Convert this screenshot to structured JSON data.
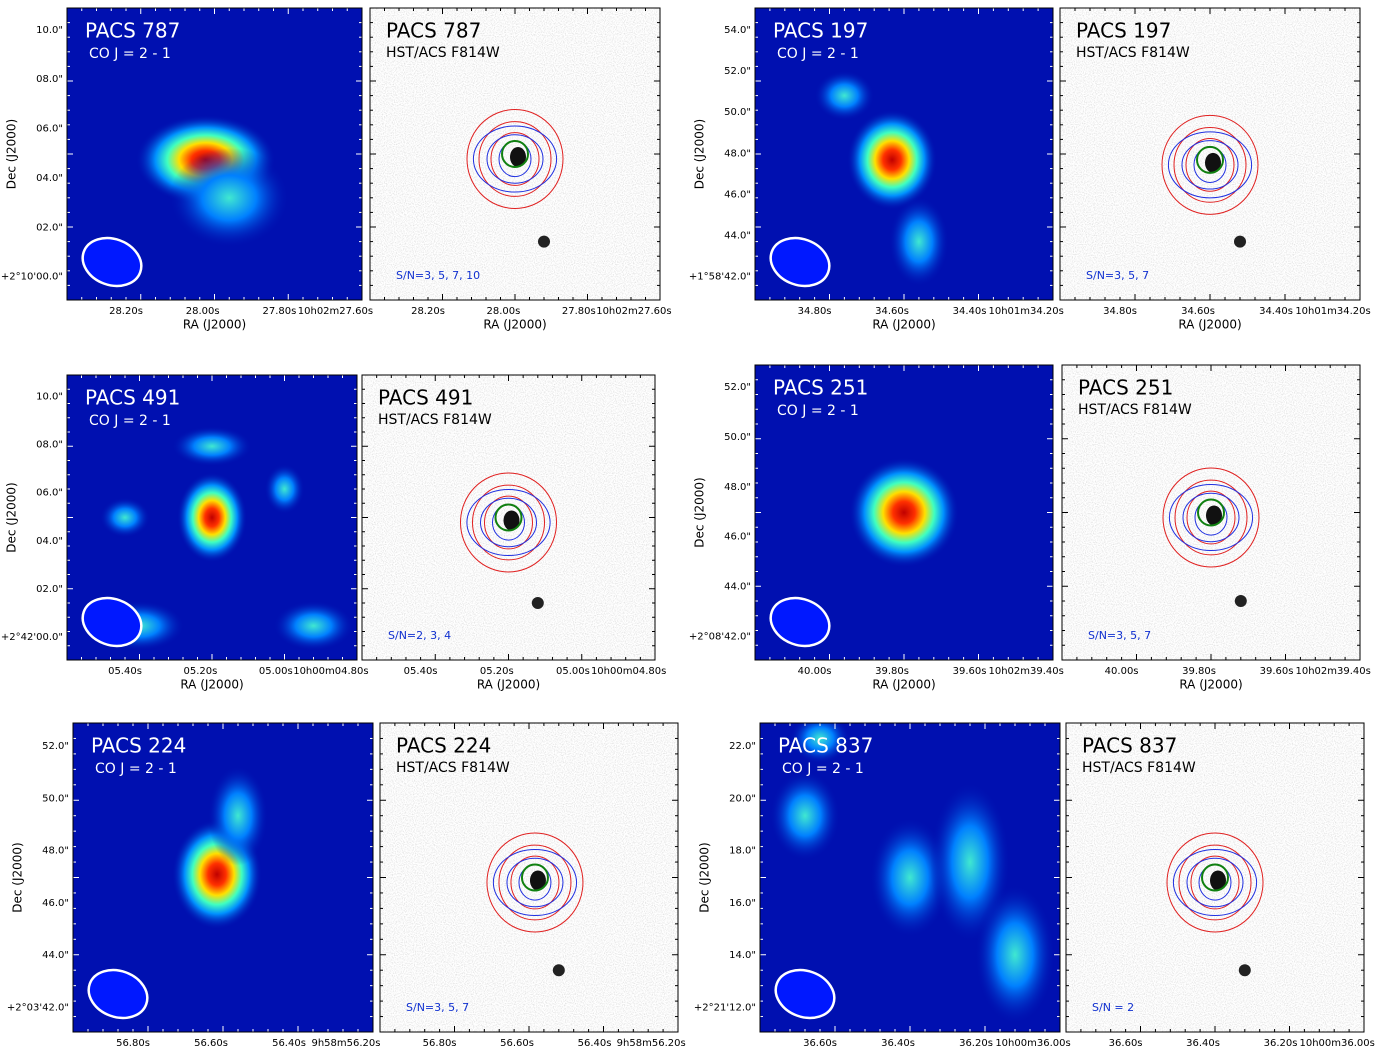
{
  "pairs": [
    {
      "co_title": "PACS 787",
      "co_line": "CO J = 2 - 1",
      "hst_title": "PACS 787",
      "hst_band": "HST/ACS F814W",
      "snr": "S/N=3, 5, 7, 10",
      "ylabel": "Dec (J2000)",
      "xlabel": "RA (J2000)",
      "yticks": [
        "10.0\"",
        "08.0\"",
        "06.0\"",
        "04.0\"",
        "02.0\"",
        "+2°10'00.0\""
      ],
      "xticks": [
        "28.20s",
        "28.00s",
        "27.80s",
        "10h02m27.60s"
      ]
    },
    {
      "co_title": "PACS 197",
      "co_line": "CO J = 2 - 1",
      "hst_title": "PACS 197",
      "hst_band": "HST/ACS F814W",
      "snr": "S/N=3, 5, 7",
      "ylabel": "Dec (J2000)",
      "xlabel": "RA (J2000)",
      "yticks": [
        "54.0\"",
        "52.0\"",
        "50.0\"",
        "48.0\"",
        "46.0\"",
        "44.0\"",
        "+1°58'42.0\""
      ],
      "xticks": [
        "34.80s",
        "34.60s",
        "34.40s",
        "10h01m34.20s"
      ]
    },
    {
      "co_title": "PACS 491",
      "co_line": "CO J = 2 - 1",
      "hst_title": "PACS 491",
      "hst_band": "HST/ACS F814W",
      "snr": "S/N=2, 3, 4",
      "ylabel": "Dec (J2000)",
      "xlabel": "RA (J2000)",
      "yticks": [
        "10.0\"",
        "08.0\"",
        "06.0\"",
        "04.0\"",
        "02.0\"",
        "+2°42'00.0\""
      ],
      "xticks": [
        "05.40s",
        "05.20s",
        "05.00s",
        "10h00m04.80s"
      ]
    },
    {
      "co_title": "PACS 251",
      "co_line": "CO J = 2 - 1",
      "hst_title": "PACS 251",
      "hst_band": "HST/ACS F814W",
      "snr": "S/N=3, 5, 7",
      "ylabel": "Dec (J2000)",
      "xlabel": "RA (J2000)",
      "yticks": [
        "52.0\"",
        "50.0\"",
        "48.0\"",
        "46.0\"",
        "44.0\"",
        "+2°08'42.0\""
      ],
      "xticks": [
        "40.00s",
        "39.80s",
        "39.60s",
        "10h02m39.40s"
      ]
    },
    {
      "co_title": "PACS 224",
      "co_line": "CO J = 2 - 1",
      "hst_title": "PACS 224",
      "hst_band": "HST/ACS F814W",
      "snr": "S/N=3, 5, 7",
      "ylabel": "Dec (J2000)",
      "xlabel": "RA (J2000)",
      "yticks": [
        "52.0\"",
        "50.0\"",
        "48.0\"",
        "46.0\"",
        "44.0\"",
        "+2°03'42.0\""
      ],
      "xticks": [
        "56.80s",
        "56.60s",
        "56.40s",
        "9h58m56.20s"
      ]
    },
    {
      "co_title": "PACS 837",
      "co_line": "CO J = 2 - 1",
      "hst_title": "PACS 837",
      "hst_band": "HST/ACS F814W",
      "snr": "S/N = 2",
      "ylabel": "Dec (J2000)",
      "xlabel": "RA (J2000)",
      "yticks": [
        "22.0\"",
        "20.0\"",
        "18.0\"",
        "16.0\"",
        "14.0\"",
        "+2°21'12.0\""
      ],
      "xticks": [
        "36.60s",
        "36.40s",
        "36.20s",
        "10h00m36.00s"
      ]
    }
  ]
}
